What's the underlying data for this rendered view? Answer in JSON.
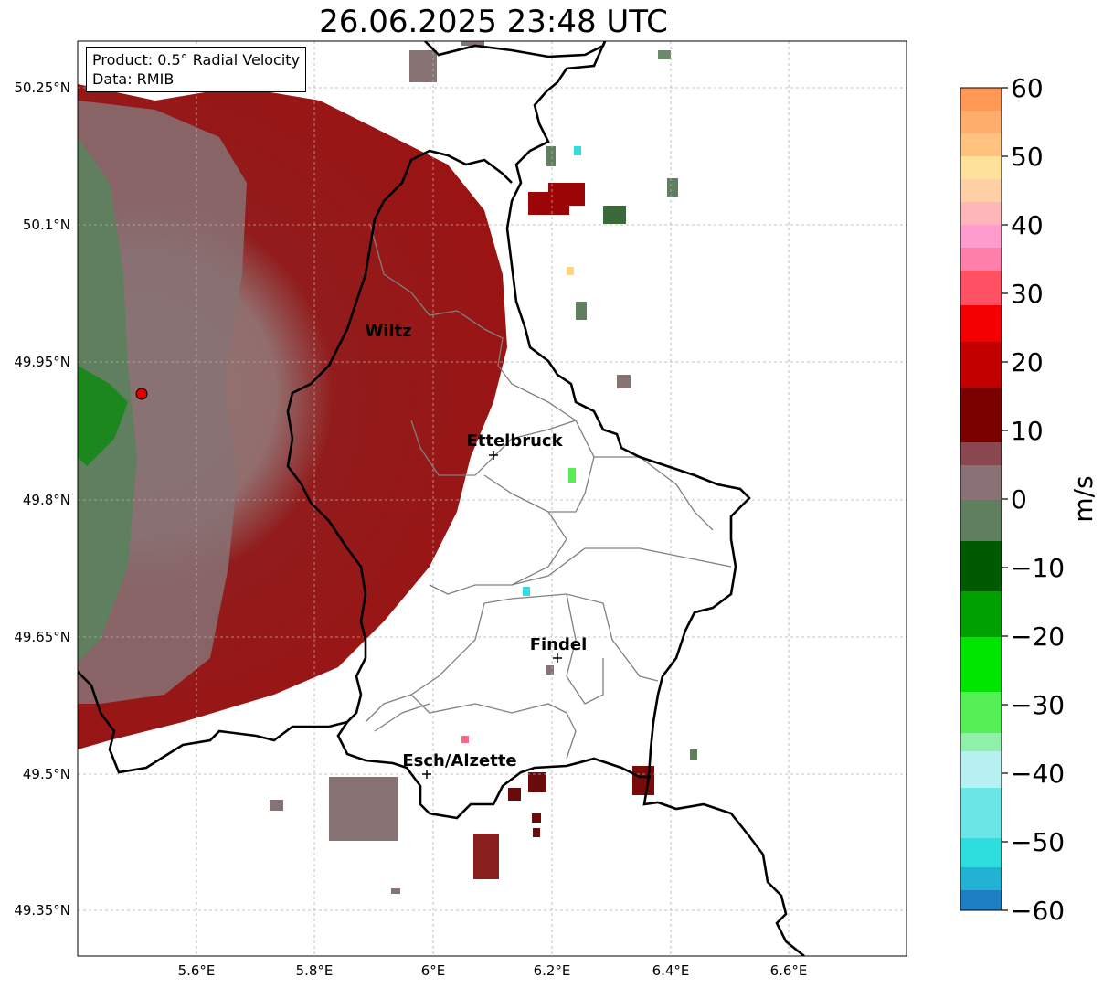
{
  "title": "26.06.2025 23:48 UTC",
  "info": {
    "product": "Product: 0.5° Radial Velocity",
    "data": "Data: RMIB"
  },
  "map": {
    "lon_range": [
      5.4,
      6.8
    ],
    "lat_range": [
      49.32,
      50.32
    ],
    "x_ticks": [
      "5.6°E",
      "5.8°E",
      "6°E",
      "6.2°E",
      "6.4°E",
      "6.6°E"
    ],
    "y_ticks": [
      "50.25°N",
      "50.1°N",
      "49.95°N",
      "49.8°N",
      "49.65°N",
      "49.5°N",
      "49.35°N"
    ],
    "grid": true,
    "radar_site": {
      "lon": 5.505,
      "lat": 49.914
    },
    "cities": [
      {
        "name": "Wiltz",
        "lon": 5.93,
        "lat": 49.97
      },
      {
        "name": "Ettelbruck",
        "lon": 6.1,
        "lat": 49.85
      },
      {
        "name": "Findel",
        "lon": 6.21,
        "lat": 49.63
      },
      {
        "name": "Esch/Alzette",
        "lon": 5.99,
        "lat": 49.5
      }
    ]
  },
  "colorbar": {
    "unit": "m/s",
    "min": -60,
    "max": 60,
    "tick_labels": [
      "60",
      "50",
      "40",
      "30",
      "20",
      "10",
      "0",
      "−10",
      "−20",
      "−30",
      "−40",
      "−50",
      "−60"
    ]
  }
}
